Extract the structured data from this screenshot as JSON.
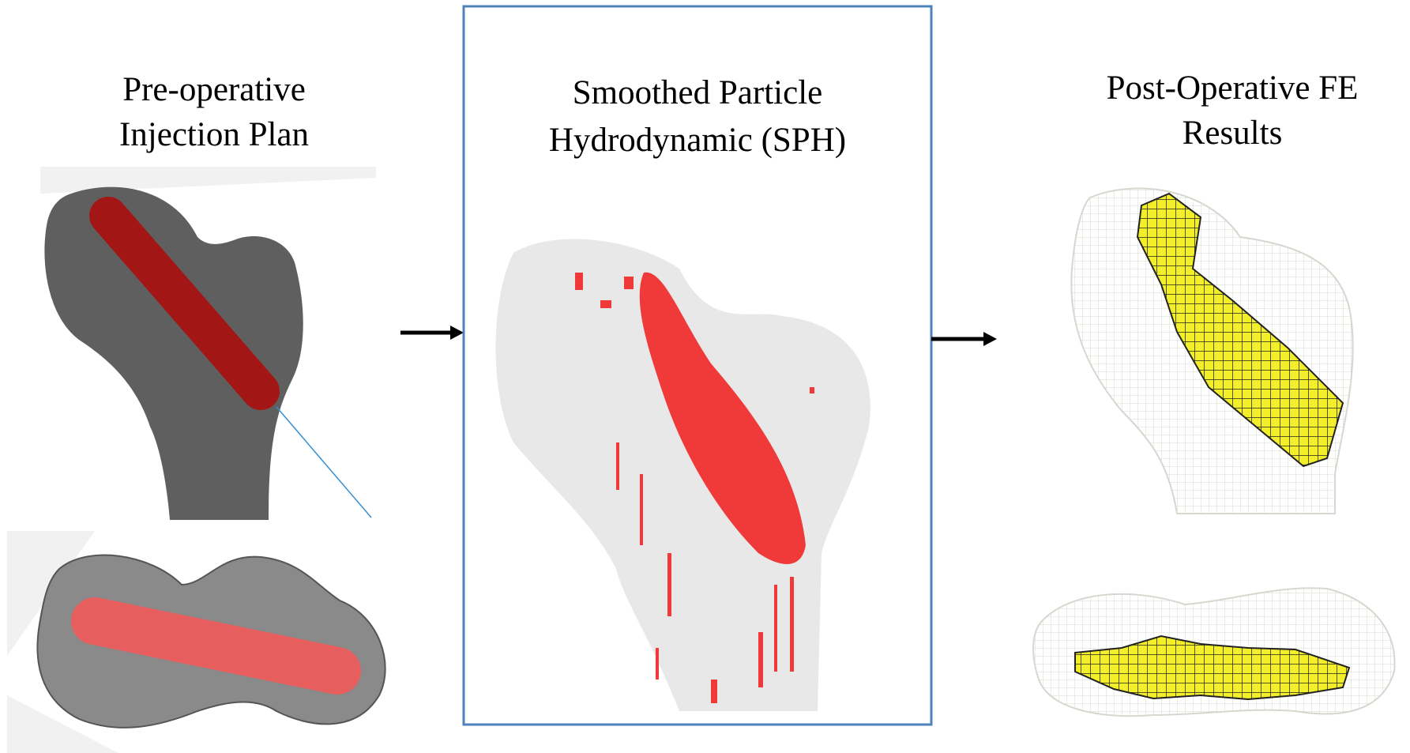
{
  "panels": [
    {
      "title": [
        "Pre-operative",
        "Injection Plan"
      ]
    },
    {
      "title": [
        "Smoothed Particle",
        "Hydrodynamic (SPH)"
      ]
    },
    {
      "title": [
        "Post-Operative FE",
        "Results"
      ]
    }
  ]
}
